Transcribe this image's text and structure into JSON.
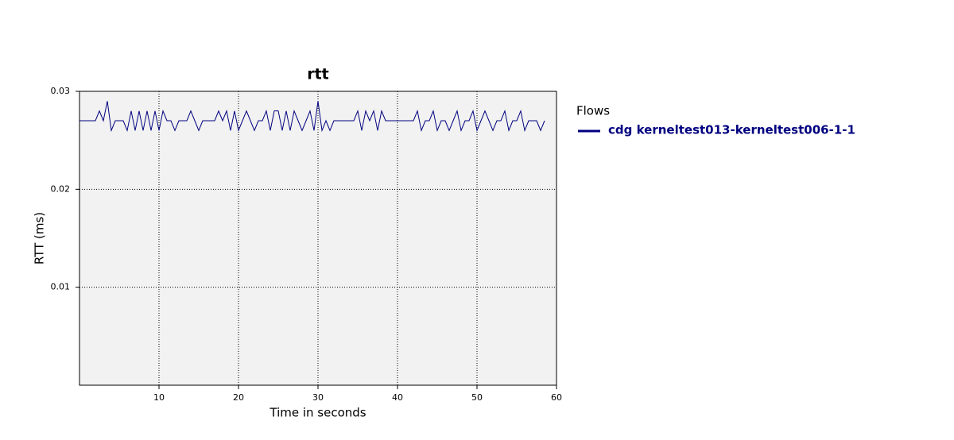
{
  "chart_data": {
    "type": "line",
    "title": "rtt",
    "x_label": "Time in seconds",
    "y_label": "RTT (ms)",
    "legend_title": "Flows",
    "x": [
      0,
      0.5,
      1,
      1.5,
      2,
      2.5,
      3,
      3.5,
      4,
      4.5,
      5,
      5.5,
      6,
      6.5,
      7,
      7.5,
      8,
      8.5,
      9,
      9.5,
      10,
      10.5,
      11,
      11.5,
      12,
      12.5,
      13,
      13.5,
      14,
      14.5,
      15,
      15.5,
      16,
      16.5,
      17,
      17.5,
      18,
      18.5,
      19,
      19.5,
      20,
      20.5,
      21,
      21.5,
      22,
      22.5,
      23,
      23.5,
      24,
      24.5,
      25,
      25.5,
      26,
      26.5,
      27,
      27.5,
      28,
      28.5,
      29,
      29.5,
      30,
      30.5,
      31,
      31.5,
      32,
      32.5,
      33,
      33.5,
      34,
      34.5,
      35,
      35.5,
      36,
      36.5,
      37,
      37.5,
      38,
      38.5,
      39,
      39.5,
      40,
      40.5,
      41,
      41.5,
      42,
      42.5,
      43,
      43.5,
      44,
      44.5,
      45,
      45.5,
      46,
      46.5,
      47,
      47.5,
      48,
      48.5,
      49,
      49.5,
      50,
      50.5,
      51,
      51.5,
      52,
      52.5,
      53,
      53.5,
      54,
      54.5,
      55,
      55.5,
      56,
      56.5,
      57,
      57.5,
      58,
      58.5
    ],
    "series": [
      {
        "name": "cdg kerneltest013-kerneltest006-1-1",
        "color": "#000080",
        "values": [
          0.027,
          0.027,
          0.027,
          0.027,
          0.027,
          0.028,
          0.027,
          0.029,
          0.026,
          0.027,
          0.027,
          0.027,
          0.026,
          0.028,
          0.026,
          0.028,
          0.026,
          0.028,
          0.026,
          0.028,
          0.026,
          0.028,
          0.027,
          0.027,
          0.026,
          0.027,
          0.027,
          0.027,
          0.028,
          0.027,
          0.026,
          0.027,
          0.027,
          0.027,
          0.027,
          0.028,
          0.027,
          0.028,
          0.026,
          0.028,
          0.026,
          0.027,
          0.028,
          0.027,
          0.026,
          0.027,
          0.027,
          0.028,
          0.026,
          0.028,
          0.028,
          0.026,
          0.028,
          0.026,
          0.028,
          0.027,
          0.026,
          0.027,
          0.028,
          0.026,
          0.029,
          0.026,
          0.027,
          0.026,
          0.027,
          0.027,
          0.027,
          0.027,
          0.027,
          0.027,
          0.028,
          0.026,
          0.028,
          0.027,
          0.028,
          0.026,
          0.028,
          0.027,
          0.027,
          0.027,
          0.027,
          0.027,
          0.027,
          0.027,
          0.027,
          0.028,
          0.026,
          0.027,
          0.027,
          0.028,
          0.026,
          0.027,
          0.027,
          0.026,
          0.027,
          0.028,
          0.026,
          0.027,
          0.027,
          0.028,
          0.026,
          0.027,
          0.028,
          0.027,
          0.026,
          0.027,
          0.027,
          0.028,
          0.026,
          0.027,
          0.027,
          0.028,
          0.026,
          0.027,
          0.027,
          0.027,
          0.026,
          0.027
        ]
      }
    ],
    "xlim": [
      0,
      60
    ],
    "xticks": [
      10,
      20,
      30,
      40,
      50,
      60
    ],
    "ylim": [
      0,
      0.03
    ],
    "yticks": [
      0.01,
      0.02,
      0.03
    ],
    "grid": true
  }
}
